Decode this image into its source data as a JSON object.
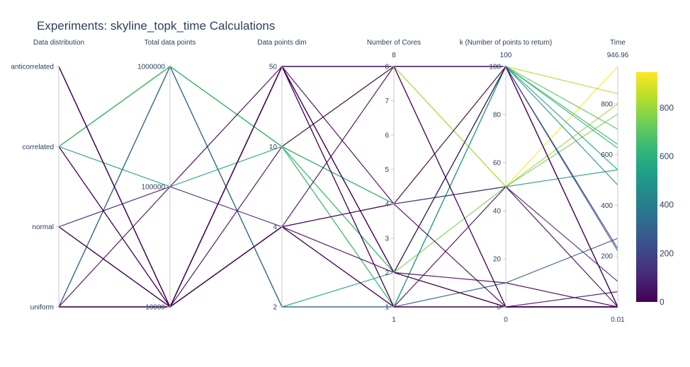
{
  "chart_data": {
    "type": "parallel_coordinates",
    "title": "Experiments: skyline_topk_time Calculations",
    "dimensions": [
      {
        "label": "Data distribution",
        "kind": "categorical",
        "categories": [
          "anticorrelated",
          "correlated",
          "normal",
          "uniform"
        ]
      },
      {
        "label": "Total data points",
        "kind": "categorical",
        "categories": [
          "1000000",
          "100000",
          "10000"
        ]
      },
      {
        "label": "Data points dim",
        "kind": "categorical",
        "categories": [
          "50",
          "10",
          "4",
          "2"
        ]
      },
      {
        "label": "Number of Cores",
        "kind": "linear",
        "range": [
          1,
          8
        ],
        "ticks": [
          "1",
          "2",
          "3",
          "4",
          "5",
          "6",
          "7",
          "8"
        ],
        "range_top": "8",
        "range_bottom": "1"
      },
      {
        "label": "k (Number of points to return)",
        "kind": "linear",
        "range": [
          0,
          100
        ],
        "ticks": [
          "0",
          "20",
          "40",
          "60",
          "80",
          "100"
        ],
        "range_top": "100",
        "range_bottom": "0"
      },
      {
        "label": "Time",
        "kind": "linear",
        "range": [
          0.01,
          946.96
        ],
        "ticks": [
          "200",
          "400",
          "600",
          "800"
        ],
        "tick_values": [
          200,
          400,
          600,
          800
        ],
        "range_top": "946.96",
        "range_bottom": "0.01"
      }
    ],
    "colorscale": "Viridis",
    "colorbar": {
      "ticks": [
        "0",
        "200",
        "400",
        "600",
        "800"
      ],
      "tick_values": [
        0,
        200,
        400,
        600,
        800
      ],
      "range": [
        0,
        946.96
      ]
    },
    "lines": [
      {
        "values": [
          "correlated",
          "1000000",
          "10",
          8,
          50,
          946.96
        ]
      },
      {
        "values": [
          "correlated",
          "1000000",
          "10",
          8,
          50,
          800
        ]
      },
      {
        "values": [
          "correlated",
          "1000000",
          "10",
          4,
          100,
          840
        ]
      },
      {
        "values": [
          "correlated",
          "1000000",
          "10",
          2,
          50,
          760
        ]
      },
      {
        "values": [
          "correlated",
          "1000000",
          "10",
          1,
          100,
          700
        ]
      },
      {
        "values": [
          "correlated",
          "1000000",
          "10",
          2,
          100,
          625
        ]
      },
      {
        "values": [
          "correlated",
          "1000000",
          "10",
          1,
          100,
          640
        ]
      },
      {
        "values": [
          "correlated",
          "100000",
          "10",
          4,
          50,
          540
        ]
      },
      {
        "values": [
          "uniform",
          "1000000",
          "2",
          2,
          100,
          540
        ]
      },
      {
        "values": [
          "uniform",
          "1000000",
          "2",
          1,
          100,
          480
        ]
      },
      {
        "values": [
          "uniform",
          "1000000",
          "2",
          1,
          10,
          270
        ]
      },
      {
        "values": [
          "anticorrelated",
          "10000",
          "50",
          8,
          100,
          230
        ]
      },
      {
        "values": [
          "anticorrelated",
          "10000",
          "50",
          8,
          100,
          220
        ]
      },
      {
        "values": [
          "normal",
          "100000",
          "4",
          4,
          50,
          100
        ]
      },
      {
        "values": [
          "normal",
          "10000",
          "50",
          1,
          0,
          60
        ]
      },
      {
        "values": [
          "anticorrelated",
          "10000",
          "4",
          2,
          0,
          0.01
        ]
      },
      {
        "values": [
          "uniform",
          "10000",
          "4",
          1,
          0,
          0.01
        ]
      },
      {
        "values": [
          "uniform",
          "10000",
          "50",
          4,
          0,
          0.01
        ]
      },
      {
        "values": [
          "correlated",
          "10000",
          "50",
          2,
          0,
          0.01
        ]
      },
      {
        "values": [
          "normal",
          "10000",
          "4",
          1,
          0,
          0.01
        ]
      },
      {
        "values": [
          "uniform",
          "100000",
          "50",
          8,
          0,
          0.01
        ]
      },
      {
        "values": [
          "anticorrelated",
          "10000",
          "4",
          8,
          100,
          0.01
        ]
      },
      {
        "values": [
          "uniform",
          "10000",
          "50",
          2,
          10,
          0.01
        ]
      },
      {
        "values": [
          "normal",
          "10000",
          "50",
          1,
          50,
          0.01
        ]
      },
      {
        "values": [
          "anticorrelated",
          "10000",
          "50",
          2,
          100,
          0.01
        ]
      },
      {
        "values": [
          "correlated",
          "10000",
          "4",
          4,
          100,
          0.01
        ]
      },
      {
        "values": [
          "uniform",
          "10000",
          "10",
          8,
          0,
          0.01
        ]
      }
    ]
  }
}
